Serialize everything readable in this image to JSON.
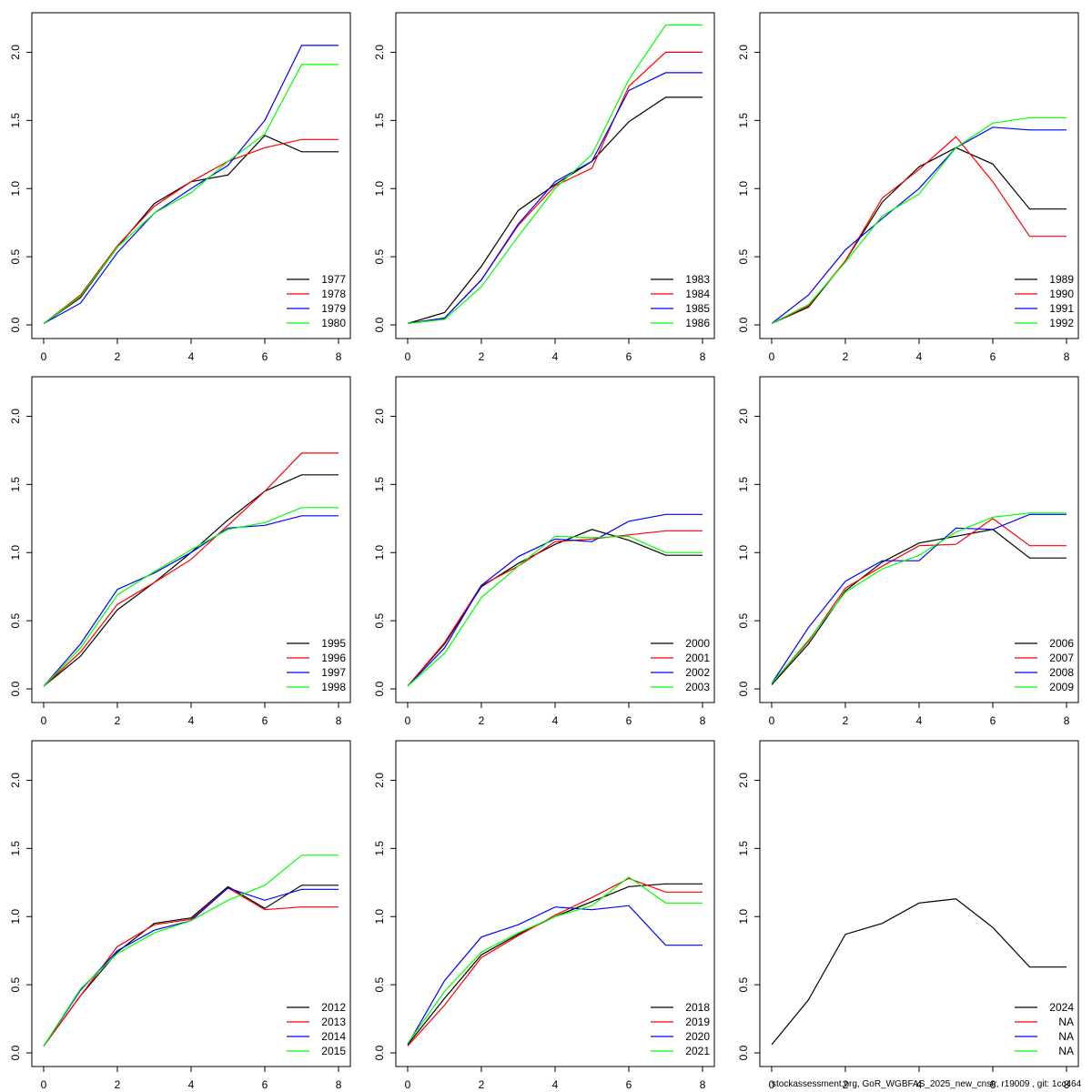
{
  "chart_data": [
    {
      "type": "line",
      "x": [
        0,
        1,
        2,
        3,
        4,
        5,
        6,
        7,
        8
      ],
      "xlim": [
        -0.32,
        8.32
      ],
      "ylim": [
        -0.1,
        2.29
      ],
      "xticks": [
        0,
        2,
        4,
        6,
        8
      ],
      "yticks": [
        {
          "value": 0,
          "label": "0.0"
        },
        0.5,
        {
          "value": 1,
          "label": "1.0"
        },
        1.5,
        {
          "value": 2,
          "label": "2.0"
        }
      ],
      "legend": "bottom-right",
      "series": [
        {
          "name": "1977",
          "color": "#000000",
          "values": [
            0.01,
            0.2,
            0.57,
            0.89,
            1.05,
            1.1,
            1.39,
            1.27,
            1.27
          ]
        },
        {
          "name": "1978",
          "color": "#ff0000",
          "values": [
            0.01,
            0.22,
            0.58,
            0.87,
            1.05,
            1.2,
            1.3,
            1.36,
            1.36
          ]
        },
        {
          "name": "1979",
          "color": "#0000ff",
          "values": [
            0.01,
            0.16,
            0.53,
            0.82,
            1.0,
            1.17,
            1.5,
            2.05,
            2.05
          ]
        },
        {
          "name": "1980",
          "color": "#00ff00",
          "values": [
            0.01,
            0.21,
            0.57,
            0.82,
            0.97,
            1.2,
            1.4,
            1.91,
            1.91
          ]
        }
      ]
    },
    {
      "type": "line",
      "x": [
        0,
        1,
        2,
        3,
        4,
        5,
        6,
        7,
        8
      ],
      "xlim": [
        -0.32,
        8.32
      ],
      "ylim": [
        -0.1,
        2.29
      ],
      "xticks": [
        0,
        2,
        4,
        6,
        8
      ],
      "yticks": [
        {
          "value": 0,
          "label": "0.0"
        },
        0.5,
        {
          "value": 1,
          "label": "1.0"
        },
        1.5,
        {
          "value": 2,
          "label": "2.0"
        }
      ],
      "legend": "bottom-right",
      "series": [
        {
          "name": "1983",
          "color": "#000000",
          "values": [
            0.01,
            0.09,
            0.43,
            0.84,
            1.03,
            1.2,
            1.49,
            1.67,
            1.67
          ]
        },
        {
          "name": "1984",
          "color": "#ff0000",
          "values": [
            0.01,
            0.05,
            0.33,
            0.73,
            1.02,
            1.15,
            1.75,
            2.0,
            2.0
          ]
        },
        {
          "name": "1985",
          "color": "#0000ff",
          "values": [
            0.01,
            0.05,
            0.33,
            0.74,
            1.05,
            1.2,
            1.72,
            1.85,
            1.85
          ]
        },
        {
          "name": "1986",
          "color": "#00ff00",
          "values": [
            0.01,
            0.04,
            0.28,
            0.65,
            1.0,
            1.25,
            1.8,
            2.2,
            2.2
          ]
        }
      ]
    },
    {
      "type": "line",
      "x": [
        0,
        1,
        2,
        3,
        4,
        5,
        6,
        7,
        8
      ],
      "xlim": [
        -0.32,
        8.32
      ],
      "ylim": [
        -0.1,
        2.29
      ],
      "xticks": [
        0,
        2,
        4,
        6,
        8
      ],
      "yticks": [
        {
          "value": 0,
          "label": "0.0"
        },
        0.5,
        {
          "value": 1,
          "label": "1.0"
        },
        1.5,
        {
          "value": 2,
          "label": "2.0"
        }
      ],
      "legend": "bottom-right",
      "series": [
        {
          "name": "1989",
          "color": "#000000",
          "values": [
            0.01,
            0.13,
            0.47,
            0.9,
            1.16,
            1.3,
            1.18,
            0.85,
            0.85
          ]
        },
        {
          "name": "1990",
          "color": "#ff0000",
          "values": [
            0.01,
            0.14,
            0.47,
            0.93,
            1.14,
            1.38,
            1.05,
            0.65,
            0.65
          ]
        },
        {
          "name": "1991",
          "color": "#0000ff",
          "values": [
            0.01,
            0.22,
            0.55,
            0.78,
            1.0,
            1.3,
            1.45,
            1.43,
            1.43
          ]
        },
        {
          "name": "1992",
          "color": "#00ff00",
          "values": [
            0.01,
            0.15,
            0.46,
            0.8,
            0.96,
            1.3,
            1.48,
            1.52,
            1.52
          ]
        }
      ]
    },
    {
      "type": "line",
      "x": [
        0,
        1,
        2,
        3,
        4,
        5,
        6,
        7,
        8
      ],
      "xlim": [
        -0.32,
        8.32
      ],
      "ylim": [
        -0.1,
        2.29
      ],
      "xticks": [
        0,
        2,
        4,
        6,
        8
      ],
      "yticks": [
        {
          "value": 0,
          "label": "0.0"
        },
        0.5,
        {
          "value": 1,
          "label": "1.0"
        },
        1.5,
        {
          "value": 2,
          "label": "2.0"
        }
      ],
      "legend": "bottom-right",
      "series": [
        {
          "name": "1995",
          "color": "#000000",
          "values": [
            0.02,
            0.24,
            0.58,
            0.78,
            1.0,
            1.24,
            1.45,
            1.57,
            1.57
          ]
        },
        {
          "name": "1996",
          "color": "#ff0000",
          "values": [
            0.02,
            0.27,
            0.62,
            0.78,
            0.95,
            1.2,
            1.45,
            1.73,
            1.73
          ]
        },
        {
          "name": "1997",
          "color": "#0000ff",
          "values": [
            0.02,
            0.33,
            0.73,
            0.85,
            1.0,
            1.18,
            1.2,
            1.27,
            1.27
          ]
        },
        {
          "name": "1998",
          "color": "#00ff00",
          "values": [
            0.02,
            0.3,
            0.69,
            0.86,
            1.02,
            1.17,
            1.22,
            1.33,
            1.33
          ]
        }
      ]
    },
    {
      "type": "line",
      "x": [
        0,
        1,
        2,
        3,
        4,
        5,
        6,
        7,
        8
      ],
      "xlim": [
        -0.32,
        8.32
      ],
      "ylim": [
        -0.1,
        2.29
      ],
      "xticks": [
        0,
        2,
        4,
        6,
        8
      ],
      "yticks": [
        {
          "value": 0,
          "label": "0.0"
        },
        0.5,
        {
          "value": 1,
          "label": "1.0"
        },
        1.5,
        {
          "value": 2,
          "label": "2.0"
        }
      ],
      "legend": "bottom-right",
      "series": [
        {
          "name": "2000",
          "color": "#000000",
          "values": [
            0.02,
            0.33,
            0.75,
            0.92,
            1.06,
            1.17,
            1.09,
            0.98,
            0.98
          ]
        },
        {
          "name": "2001",
          "color": "#ff0000",
          "values": [
            0.02,
            0.34,
            0.76,
            0.9,
            1.08,
            1.1,
            1.13,
            1.16,
            1.16
          ]
        },
        {
          "name": "2002",
          "color": "#0000ff",
          "values": [
            0.02,
            0.3,
            0.76,
            0.97,
            1.1,
            1.08,
            1.23,
            1.28,
            1.28
          ]
        },
        {
          "name": "2003",
          "color": "#00ff00",
          "values": [
            0.02,
            0.26,
            0.67,
            0.9,
            1.12,
            1.11,
            1.12,
            1.0,
            1.0
          ]
        }
      ]
    },
    {
      "type": "line",
      "x": [
        0,
        1,
        2,
        3,
        4,
        5,
        6,
        7,
        8
      ],
      "xlim": [
        -0.32,
        8.32
      ],
      "ylim": [
        -0.1,
        2.29
      ],
      "xticks": [
        0,
        2,
        4,
        6,
        8
      ],
      "yticks": [
        {
          "value": 0,
          "label": "0.0"
        },
        0.5,
        {
          "value": 1,
          "label": "1.0"
        },
        1.5,
        {
          "value": 2,
          "label": "2.0"
        }
      ],
      "legend": "bottom-right",
      "series": [
        {
          "name": "2006",
          "color": "#000000",
          "values": [
            0.03,
            0.33,
            0.72,
            0.93,
            1.07,
            1.12,
            1.17,
            0.96,
            0.96
          ]
        },
        {
          "name": "2007",
          "color": "#ff0000",
          "values": [
            0.04,
            0.35,
            0.74,
            0.9,
            1.05,
            1.06,
            1.25,
            1.05,
            1.05
          ]
        },
        {
          "name": "2008",
          "color": "#0000ff",
          "values": [
            0.04,
            0.45,
            0.79,
            0.94,
            0.94,
            1.18,
            1.17,
            1.28,
            1.28
          ]
        },
        {
          "name": "2009",
          "color": "#00ff00",
          "values": [
            0.04,
            0.36,
            0.71,
            0.88,
            0.98,
            1.15,
            1.26,
            1.29,
            1.29
          ]
        }
      ]
    },
    {
      "type": "line",
      "x": [
        0,
        1,
        2,
        3,
        4,
        5,
        6,
        7,
        8
      ],
      "xlim": [
        -0.32,
        8.32
      ],
      "ylim": [
        -0.1,
        2.29
      ],
      "xticks": [
        0,
        2,
        4,
        6,
        8
      ],
      "yticks": [
        {
          "value": 0,
          "label": "0.0"
        },
        0.5,
        {
          "value": 1,
          "label": "1.0"
        },
        1.5,
        {
          "value": 2,
          "label": "2.0"
        }
      ],
      "legend": "bottom-right",
      "series": [
        {
          "name": "2012",
          "color": "#000000",
          "values": [
            0.05,
            0.42,
            0.74,
            0.95,
            0.99,
            1.22,
            1.06,
            1.23,
            1.23
          ]
        },
        {
          "name": "2013",
          "color": "#ff0000",
          "values": [
            0.05,
            0.42,
            0.78,
            0.94,
            0.98,
            1.21,
            1.05,
            1.07,
            1.07
          ]
        },
        {
          "name": "2014",
          "color": "#0000ff",
          "values": [
            0.05,
            0.46,
            0.75,
            0.9,
            0.97,
            1.21,
            1.12,
            1.2,
            1.2
          ]
        },
        {
          "name": "2015",
          "color": "#00ff00",
          "values": [
            0.05,
            0.47,
            0.73,
            0.88,
            0.97,
            1.12,
            1.23,
            1.45,
            1.45
          ]
        }
      ]
    },
    {
      "type": "line",
      "x": [
        0,
        1,
        2,
        3,
        4,
        5,
        6,
        7,
        8
      ],
      "xlim": [
        -0.32,
        8.32
      ],
      "ylim": [
        -0.1,
        2.29
      ],
      "xticks": [
        0,
        2,
        4,
        6,
        8
      ],
      "yticks": [
        {
          "value": 0,
          "label": "0.0"
        },
        0.5,
        {
          "value": 1,
          "label": "1.0"
        },
        1.5,
        {
          "value": 2,
          "label": "2.0"
        }
      ],
      "legend": "bottom-right",
      "series": [
        {
          "name": "2018",
          "color": "#000000",
          "values": [
            0.06,
            0.4,
            0.72,
            0.87,
            1.0,
            1.11,
            1.22,
            1.24,
            1.24
          ]
        },
        {
          "name": "2019",
          "color": "#ff0000",
          "values": [
            0.05,
            0.35,
            0.7,
            0.86,
            1.01,
            1.14,
            1.28,
            1.18,
            1.18
          ]
        },
        {
          "name": "2020",
          "color": "#0000ff",
          "values": [
            0.06,
            0.53,
            0.85,
            0.94,
            1.07,
            1.05,
            1.08,
            0.79,
            0.79
          ]
        },
        {
          "name": "2021",
          "color": "#00ff00",
          "values": [
            0.07,
            0.45,
            0.74,
            0.88,
            1.0,
            1.08,
            1.29,
            1.1,
            1.1
          ]
        }
      ]
    },
    {
      "type": "line",
      "x": [
        0,
        1,
        2,
        3,
        4,
        5,
        6,
        7,
        8
      ],
      "xlim": [
        -0.32,
        8.32
      ],
      "ylim": [
        -0.1,
        2.29
      ],
      "xticks": [
        0,
        2,
        4,
        6,
        8
      ],
      "yticks": [
        {
          "value": 0,
          "label": "0.0"
        },
        0.5,
        {
          "value": 1,
          "label": "1.0"
        },
        1.5,
        {
          "value": 2,
          "label": "2.0"
        }
      ],
      "legend": "bottom-right",
      "series": [
        {
          "name": "2024",
          "color": "#000000",
          "values": [
            0.06,
            0.39,
            0.87,
            0.95,
            1.1,
            1.13,
            0.92,
            0.63,
            0.63
          ]
        },
        {
          "name": "NA",
          "color": "#ff0000",
          "values": [
            null,
            null,
            null,
            null,
            null,
            null,
            null,
            null,
            null
          ]
        },
        {
          "name": "NA",
          "color": "#0000ff",
          "values": [
            null,
            null,
            null,
            null,
            null,
            null,
            null,
            null,
            null
          ]
        },
        {
          "name": "NA",
          "color": "#00ff00",
          "values": [
            null,
            null,
            null,
            null,
            null,
            null,
            null,
            null,
            null
          ]
        }
      ]
    }
  ],
  "footer": "stockassessment.org, GoR_WGBFAS_2025_new_cnstr, r19009 , git: 1cc464"
}
